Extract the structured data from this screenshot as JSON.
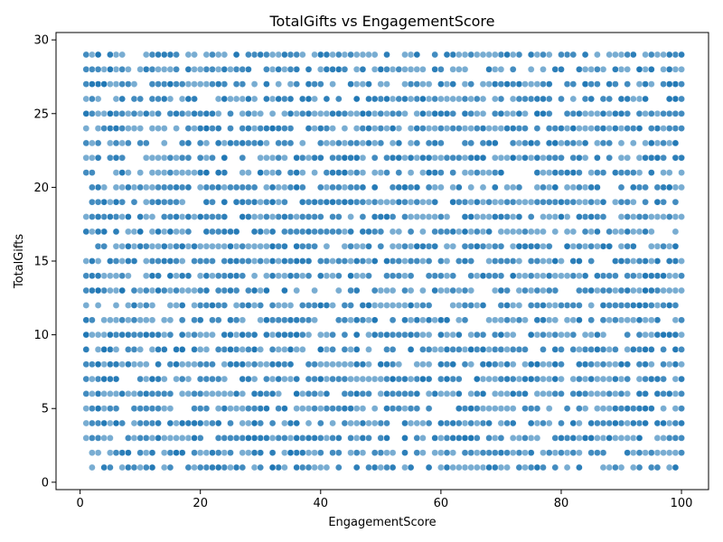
{
  "chart_data": {
    "type": "scatter",
    "title": "TotalGifts vs EngagementScore",
    "xlabel": "EngagementScore",
    "ylabel": "TotalGifts",
    "xlim": [
      -4,
      104.5
    ],
    "ylim": [
      -0.5,
      30.5
    ],
    "xticks": [
      0,
      20,
      40,
      60,
      80,
      100
    ],
    "yticks": [
      0,
      5,
      10,
      15,
      20,
      25,
      30
    ],
    "grid": false,
    "point_color": "#1f77b4",
    "point_alpha": 0.6,
    "x_range": [
      1,
      100
    ],
    "y_range": [
      1,
      29
    ],
    "note_points": "Dense uniform scatter: integer TotalGifts 1-29 (none at 0 or 30) spread across EngagementScore 1-100."
  }
}
